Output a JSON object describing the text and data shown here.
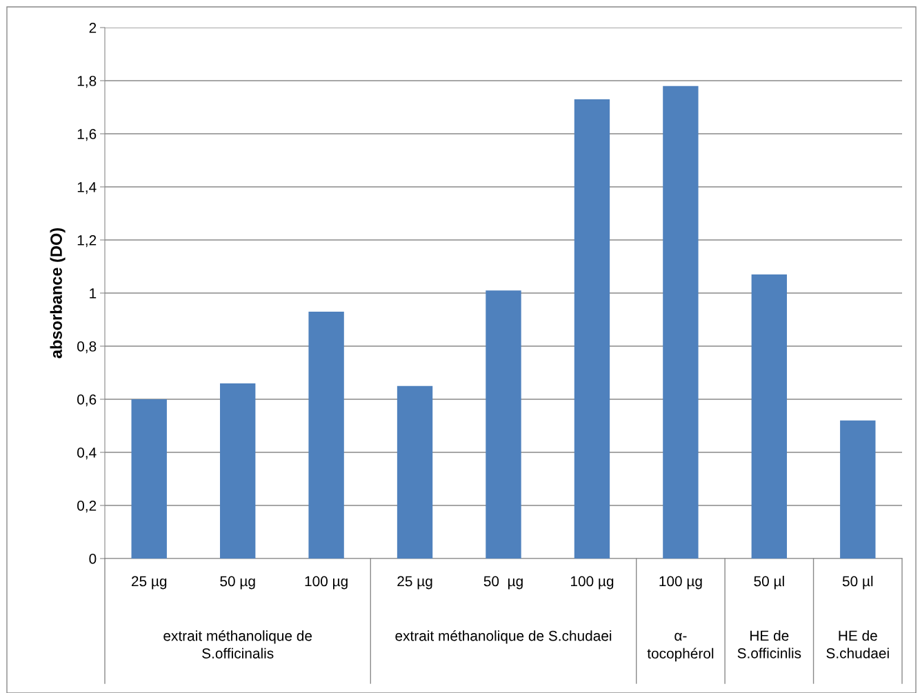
{
  "chart_data": {
    "type": "bar",
    "ylabel": "absorbance (DO)",
    "categories": [
      "25 µg",
      "50 µg",
      "100 µg",
      "25 µg",
      "50  µg",
      "100 µg",
      "100 µg",
      "50 µl",
      "50 µl"
    ],
    "values": [
      0.6,
      0.66,
      0.93,
      0.65,
      1.01,
      1.73,
      1.78,
      1.07,
      0.52
    ],
    "color": "#4f81bd",
    "ylim": [
      0,
      2
    ],
    "yticks": [
      {
        "value": 0,
        "label": "0"
      },
      {
        "value": 0.2,
        "label": "0,2"
      },
      {
        "value": 0.4,
        "label": "0,4"
      },
      {
        "value": 0.6,
        "label": "0,6"
      },
      {
        "value": 0.8,
        "label": "0,8"
      },
      {
        "value": 1,
        "label": "1"
      },
      {
        "value": 1.2,
        "label": "1,2"
      },
      {
        "value": 1.4,
        "label": "1,4"
      },
      {
        "value": 1.6,
        "label": "1,6"
      },
      {
        "value": 1.8,
        "label": "1,8"
      },
      {
        "value": 2,
        "label": "2"
      }
    ],
    "grid": "y",
    "annotations": [
      "extrait méthanolique de\nS.officinalis",
      "extrait méthanolique de S.chudaei",
      "α-\ntocophérol",
      "HE de\nS.officinlis",
      "HE de\nS.chudaei"
    ]
  }
}
